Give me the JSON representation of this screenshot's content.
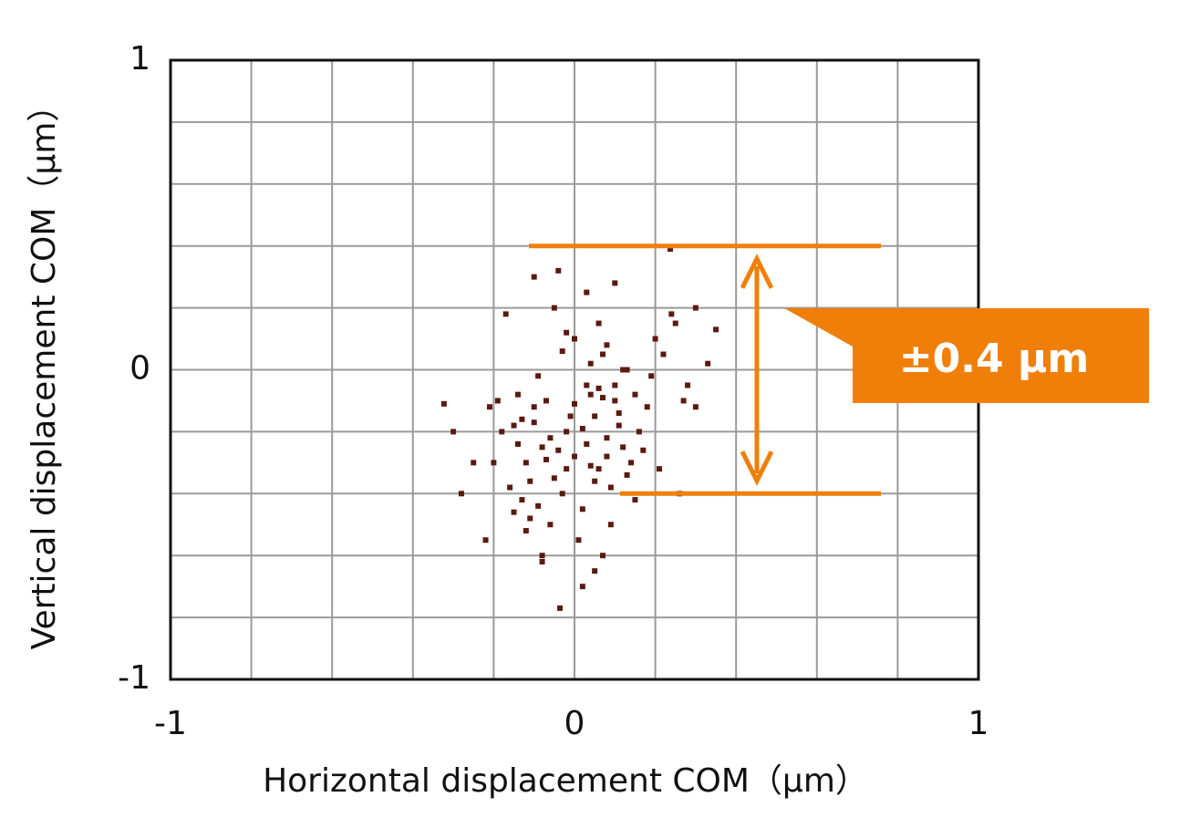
{
  "chart_data": {
    "type": "scatter",
    "x_label": "Horizontal displacement COM（µm）",
    "y_label": "Vertical displacement COM（µm）",
    "xlim": [
      -1,
      1
    ],
    "ylim": [
      -1,
      1
    ],
    "xticks": [
      -1,
      0,
      1
    ],
    "yticks": [
      -1,
      0,
      1
    ],
    "xgrid": [
      -0.8,
      -0.6,
      -0.4,
      -0.2,
      0,
      0.2,
      0.4,
      0.6,
      0.8
    ],
    "ygrid": [
      -0.8,
      -0.6,
      -0.4,
      -0.2,
      0,
      0.2,
      0.4,
      0.6,
      0.8
    ],
    "grid": true,
    "annotation": "±0.4 µm",
    "band": [
      0.4,
      -0.4
    ],
    "annotation_color": "#f07f0a",
    "series": [
      {
        "color": "#5a1a12",
        "x": [
          -0.02,
          0.05,
          -0.08,
          0.1,
          -0.12,
          0.03,
          -0.05,
          0.08,
          -0.15,
          0.0,
          0.12,
          -0.1,
          0.06,
          -0.03,
          0.15,
          -0.18,
          0.02,
          -0.07,
          0.09,
          -0.13,
          0.04,
          -0.06,
          0.11,
          -0.2,
          0.07,
          -0.01,
          0.14,
          -0.09,
          0.18,
          -0.04,
          0.01,
          -0.14,
          0.13,
          -0.11,
          0.05,
          -0.16,
          0.08,
          -0.02,
          0.16,
          -0.08,
          0.2,
          0.25,
          0.3,
          0.22,
          0.28,
          0.33,
          0.24,
          0.35,
          0.27,
          0.19,
          0.237,
          -0.323,
          -0.036,
          -0.25,
          -0.28,
          -0.22,
          0.3,
          0.26,
          0.21,
          -0.3,
          -0.05,
          0.03,
          -0.1,
          0.06,
          0.1,
          -0.17,
          0.0,
          0.12,
          -0.04,
          0.05,
          -0.08,
          0.02,
          0.07,
          -0.12,
          -0.06,
          0.1,
          0.15,
          -0.19,
          -0.02,
          0.04,
          -0.1,
          0.0,
          0.08,
          -0.14,
          0.11,
          -0.07,
          0.03,
          -0.11,
          0.06,
          0.13,
          -0.21,
          0.17,
          -0.15,
          0.09,
          -0.03,
          0.02,
          -0.09,
          0.07,
          -0.13,
          0.04
        ],
        "values": [
          -0.2,
          -0.15,
          -0.25,
          -0.1,
          -0.3,
          -0.05,
          -0.35,
          -0.22,
          -0.18,
          -0.28,
          -0.25,
          -0.12,
          -0.32,
          -0.4,
          -0.08,
          -0.2,
          -0.45,
          -0.1,
          -0.38,
          -0.42,
          0.02,
          -0.5,
          -0.18,
          -0.3,
          0.05,
          -0.15,
          -0.3,
          -0.02,
          -0.12,
          -0.26,
          -0.55,
          -0.08,
          0.0,
          -0.48,
          -0.36,
          -0.38,
          0.08,
          0.12,
          -0.2,
          -0.6,
          0.1,
          0.15,
          0.2,
          0.05,
          -0.05,
          0.02,
          0.18,
          0.13,
          -0.1,
          -0.02,
          0.39,
          -0.11,
          -0.77,
          -0.3,
          -0.4,
          -0.55,
          -0.12,
          -0.4,
          -0.32,
          -0.2,
          0.2,
          0.25,
          0.3,
          0.15,
          0.28,
          0.18,
          0.1,
          0.0,
          0.32,
          -0.65,
          -0.62,
          -0.7,
          -0.6,
          -0.52,
          -0.22,
          -0.05,
          -0.42,
          -0.1,
          -0.32,
          -0.08,
          -0.17,
          -0.11,
          -0.28,
          -0.24,
          -0.14,
          -0.29,
          -0.24,
          -0.36,
          -0.06,
          -0.34,
          -0.12,
          -0.26,
          -0.46,
          -0.5,
          0.06,
          -0.19,
          -0.44,
          -0.09,
          -0.16,
          -0.31
        ]
      }
    ]
  }
}
